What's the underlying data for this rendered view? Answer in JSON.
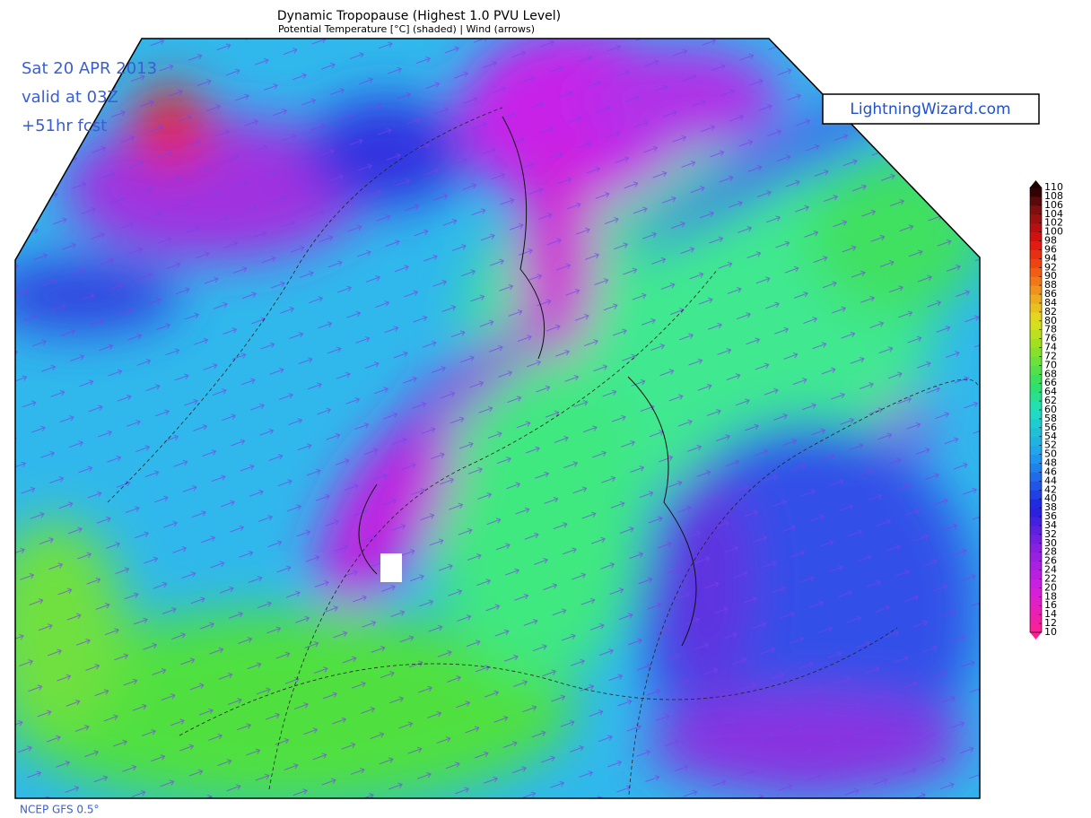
{
  "header": {
    "title": "Dynamic Tropopause (Highest 1.0 PVU Level)",
    "subtitle": "Potential Temperature [°C] (shaded) | Wind (arrows)"
  },
  "valid": {
    "date": "Sat 20 APR 2013",
    "time": "valid at 03Z",
    "forecast": "+51hr fcst"
  },
  "logo": "LightningWizard.com",
  "footer": "NCEP GFS 0.5°",
  "colorbar": {
    "labels": [
      10,
      12,
      14,
      16,
      18,
      20,
      22,
      24,
      26,
      28,
      30,
      32,
      34,
      36,
      38,
      40,
      42,
      44,
      46,
      48,
      50,
      52,
      54,
      56,
      58,
      60,
      62,
      64,
      66,
      68,
      70,
      72,
      74,
      76,
      78,
      80,
      82,
      84,
      86,
      88,
      90,
      92,
      94,
      96,
      98,
      100,
      102,
      104,
      106,
      108,
      110
    ]
  }
}
